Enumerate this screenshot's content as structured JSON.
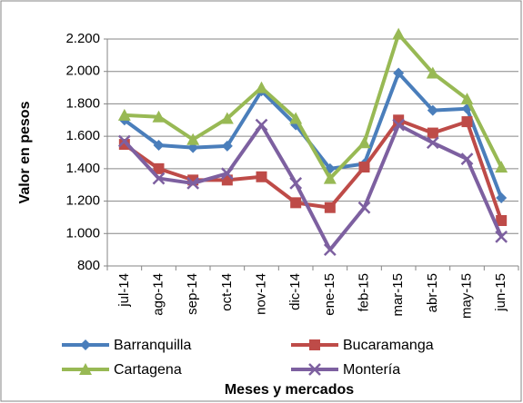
{
  "chart_data": {
    "type": "line",
    "x_label": "Meses y mercados",
    "y_label": "Valor en pesos",
    "categories": [
      "jul-14",
      "ago-14",
      "sep-14",
      "oct-14",
      "nov-14",
      "dic-14",
      "ene-15",
      "feb-15",
      "mar-15",
      "abr-15",
      "may-15",
      "jun-15"
    ],
    "series": [
      {
        "name": "Barranquilla",
        "color": "#4a7ebb",
        "marker": "diamond",
        "values": [
          1700,
          1545,
          1530,
          1540,
          1880,
          1670,
          1400,
          1430,
          1990,
          1760,
          1770,
          1220
        ]
      },
      {
        "name": "Bucaramanga",
        "color": "#be4b48",
        "marker": "square",
        "values": [
          1550,
          1400,
          1330,
          1330,
          1350,
          1190,
          1160,
          1410,
          1700,
          1620,
          1690,
          1080
        ]
      },
      {
        "name": "Cartagena",
        "color": "#98b954",
        "marker": "triangle",
        "values": [
          1730,
          1720,
          1580,
          1710,
          1900,
          1710,
          1340,
          1560,
          2230,
          1990,
          1830,
          1410
        ]
      },
      {
        "name": "Montería",
        "color": "#7d60a0",
        "marker": "x",
        "values": [
          1570,
          1340,
          1310,
          1370,
          1670,
          1310,
          900,
          1160,
          1670,
          1560,
          1460,
          980
        ]
      }
    ],
    "ylim": [
      800,
      2200
    ],
    "yticks": [
      {
        "value": 800,
        "label": "800"
      },
      {
        "value": 1000,
        "label": "1.000"
      },
      {
        "value": 1200,
        "label": "1.200"
      },
      {
        "value": 1400,
        "label": "1.400"
      },
      {
        "value": 1600,
        "label": "1.600"
      },
      {
        "value": 1800,
        "label": "1.800"
      },
      {
        "value": 2000,
        "label": "2.000"
      },
      {
        "value": 2200,
        "label": "2.200"
      }
    ],
    "grid": true,
    "legend": "bottom"
  }
}
